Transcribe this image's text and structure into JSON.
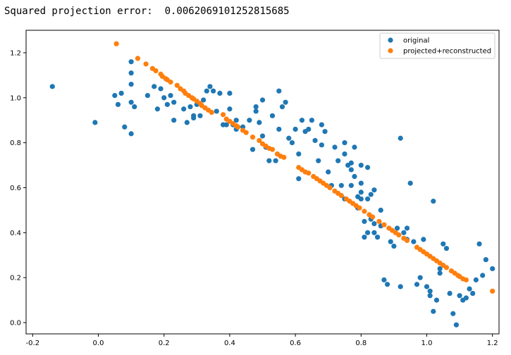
{
  "output": {
    "error_label": "Squared projection error:",
    "error_value": "0.0062069101252815685"
  },
  "colors": {
    "original": "#1f77b4",
    "projected": "#ff7f0e"
  },
  "chart_data": {
    "type": "scatter",
    "title": "",
    "xlabel": "",
    "ylabel": "",
    "xlim": [
      -0.22,
      1.22
    ],
    "ylim": [
      -0.05,
      1.3
    ],
    "xticks": [
      "-0.2",
      "0.0",
      "0.2",
      "0.4",
      "0.6",
      "0.8",
      "1.0",
      "1.2"
    ],
    "yticks": [
      "0.0",
      "0.2",
      "0.4",
      "0.6",
      "0.8",
      "1.0",
      "1.2"
    ],
    "legend_position": "top-right",
    "grid": false,
    "series": [
      {
        "name": "original",
        "color": "#1f77b4",
        "points": [
          [
            -0.14,
            1.05
          ],
          [
            -0.01,
            0.89
          ],
          [
            0.05,
            1.01
          ],
          [
            0.06,
            0.97
          ],
          [
            0.07,
            1.02
          ],
          [
            0.08,
            0.87
          ],
          [
            0.1,
            0.84
          ],
          [
            0.1,
            1.16
          ],
          [
            0.1,
            1.11
          ],
          [
            0.1,
            1.06
          ],
          [
            0.1,
            0.98
          ],
          [
            0.11,
            0.96
          ],
          [
            0.15,
            1.01
          ],
          [
            0.17,
            1.05
          ],
          [
            0.18,
            0.95
          ],
          [
            0.19,
            1.04
          ],
          [
            0.2,
            1.0
          ],
          [
            0.22,
            1.01
          ],
          [
            0.21,
            0.97
          ],
          [
            0.23,
            0.98
          ],
          [
            0.23,
            0.9
          ],
          [
            0.26,
            0.95
          ],
          [
            0.27,
            0.89
          ],
          [
            0.28,
            0.96
          ],
          [
            0.29,
            0.91
          ],
          [
            0.29,
            0.92
          ],
          [
            0.3,
            0.97
          ],
          [
            0.31,
            0.92
          ],
          [
            0.32,
            0.99
          ],
          [
            0.33,
            1.03
          ],
          [
            0.34,
            1.05
          ],
          [
            0.35,
            1.03
          ],
          [
            0.36,
            0.94
          ],
          [
            0.37,
            1.02
          ],
          [
            0.38,
            0.88
          ],
          [
            0.39,
            0.88
          ],
          [
            0.4,
            1.02
          ],
          [
            0.4,
            0.95
          ],
          [
            0.42,
            0.86
          ],
          [
            0.41,
            0.88
          ],
          [
            0.42,
            0.9
          ],
          [
            0.44,
            0.87
          ],
          [
            0.46,
            0.9
          ],
          [
            0.47,
            0.77
          ],
          [
            0.48,
            0.96
          ],
          [
            0.48,
            0.94
          ],
          [
            0.49,
            0.89
          ],
          [
            0.5,
            0.83
          ],
          [
            0.5,
            0.99
          ],
          [
            0.51,
            0.78
          ],
          [
            0.52,
            0.72
          ],
          [
            0.53,
            0.92
          ],
          [
            0.54,
            0.72
          ],
          [
            0.55,
            0.86
          ],
          [
            0.55,
            1.03
          ],
          [
            0.56,
            0.96
          ],
          [
            0.57,
            0.98
          ],
          [
            0.58,
            0.82
          ],
          [
            0.59,
            0.8
          ],
          [
            0.6,
            0.86
          ],
          [
            0.61,
            0.75
          ],
          [
            0.61,
            0.64
          ],
          [
            0.62,
            0.9
          ],
          [
            0.63,
            0.85
          ],
          [
            0.64,
            0.86
          ],
          [
            0.65,
            0.9
          ],
          [
            0.66,
            0.81
          ],
          [
            0.67,
            0.72
          ],
          [
            0.68,
            0.79
          ],
          [
            0.68,
            0.88
          ],
          [
            0.69,
            0.85
          ],
          [
            0.7,
            0.67
          ],
          [
            0.71,
            0.61
          ],
          [
            0.72,
            0.78
          ],
          [
            0.73,
            0.72
          ],
          [
            0.74,
            0.61
          ],
          [
            0.75,
            0.75
          ],
          [
            0.75,
            0.55
          ],
          [
            0.75,
            0.8
          ],
          [
            0.76,
            0.7
          ],
          [
            0.77,
            0.68
          ],
          [
            0.77,
            0.71
          ],
          [
            0.77,
            0.61
          ],
          [
            0.78,
            0.78
          ],
          [
            0.78,
            0.65
          ],
          [
            0.79,
            0.56
          ],
          [
            0.79,
            0.51
          ],
          [
            0.8,
            0.58
          ],
          [
            0.8,
            0.7
          ],
          [
            0.8,
            0.62
          ],
          [
            0.8,
            0.55
          ],
          [
            0.81,
            0.38
          ],
          [
            0.81,
            0.45
          ],
          [
            0.82,
            0.4
          ],
          [
            0.82,
            0.55
          ],
          [
            0.82,
            0.69
          ],
          [
            0.83,
            0.57
          ],
          [
            0.83,
            0.46
          ],
          [
            0.84,
            0.59
          ],
          [
            0.84,
            0.4
          ],
          [
            0.84,
            0.44
          ],
          [
            0.85,
            0.38
          ],
          [
            0.86,
            0.5
          ],
          [
            0.86,
            0.43
          ],
          [
            0.87,
            0.19
          ],
          [
            0.88,
            0.17
          ],
          [
            0.89,
            0.36
          ],
          [
            0.9,
            0.34
          ],
          [
            0.91,
            0.42
          ],
          [
            0.92,
            0.16
          ],
          [
            0.92,
            0.82
          ],
          [
            0.93,
            0.4
          ],
          [
            0.94,
            0.37
          ],
          [
            0.94,
            0.42
          ],
          [
            0.95,
            0.62
          ],
          [
            0.96,
            0.36
          ],
          [
            0.97,
            0.17
          ],
          [
            0.98,
            0.2
          ],
          [
            0.99,
            0.37
          ],
          [
            1.0,
            0.16
          ],
          [
            1.01,
            0.14
          ],
          [
            1.01,
            0.12
          ],
          [
            1.02,
            0.05
          ],
          [
            1.02,
            0.54
          ],
          [
            1.03,
            0.1
          ],
          [
            1.04,
            0.24
          ],
          [
            1.04,
            0.22
          ],
          [
            1.05,
            0.35
          ],
          [
            1.06,
            0.33
          ],
          [
            1.07,
            0.13
          ],
          [
            1.08,
            0.04
          ],
          [
            1.09,
            -0.01
          ],
          [
            1.1,
            0.12
          ],
          [
            1.11,
            0.1
          ],
          [
            1.12,
            0.11
          ],
          [
            1.13,
            0.15
          ],
          [
            1.14,
            0.13
          ],
          [
            1.15,
            0.19
          ],
          [
            1.16,
            0.35
          ],
          [
            1.17,
            0.21
          ],
          [
            1.18,
            0.28
          ],
          [
            1.2,
            0.24
          ]
        ]
      },
      {
        "name": "projected+reconstructed",
        "color": "#ff7f0e",
        "points": [
          [
            0.055,
            1.24
          ],
          [
            0.12,
            1.175
          ],
          [
            0.145,
            1.15
          ],
          [
            0.165,
            1.13
          ],
          [
            0.175,
            1.12
          ],
          [
            0.19,
            1.105
          ],
          [
            0.195,
            1.095
          ],
          [
            0.205,
            1.085
          ],
          [
            0.21,
            1.08
          ],
          [
            0.22,
            1.07
          ],
          [
            0.24,
            1.055
          ],
          [
            0.25,
            1.04
          ],
          [
            0.26,
            1.03
          ],
          [
            0.265,
            1.02
          ],
          [
            0.275,
            1.01
          ],
          [
            0.285,
            1.0
          ],
          [
            0.29,
            0.995
          ],
          [
            0.3,
            0.985
          ],
          [
            0.31,
            0.975
          ],
          [
            0.315,
            0.965
          ],
          [
            0.325,
            0.955
          ],
          [
            0.335,
            0.945
          ],
          [
            0.345,
            0.935
          ],
          [
            0.38,
            0.925
          ],
          [
            0.39,
            0.905
          ],
          [
            0.4,
            0.895
          ],
          [
            0.41,
            0.885
          ],
          [
            0.42,
            0.875
          ],
          [
            0.425,
            0.87
          ],
          [
            0.44,
            0.855
          ],
          [
            0.45,
            0.845
          ],
          [
            0.47,
            0.825
          ],
          [
            0.49,
            0.81
          ],
          [
            0.5,
            0.795
          ],
          [
            0.51,
            0.785
          ],
          [
            0.52,
            0.775
          ],
          [
            0.53,
            0.77
          ],
          [
            0.545,
            0.75
          ],
          [
            0.555,
            0.74
          ],
          [
            0.565,
            0.735
          ],
          [
            0.61,
            0.69
          ],
          [
            0.62,
            0.68
          ],
          [
            0.63,
            0.67
          ],
          [
            0.64,
            0.665
          ],
          [
            0.655,
            0.65
          ],
          [
            0.665,
            0.64
          ],
          [
            0.675,
            0.63
          ],
          [
            0.685,
            0.62
          ],
          [
            0.695,
            0.61
          ],
          [
            0.705,
            0.6
          ],
          [
            0.72,
            0.585
          ],
          [
            0.73,
            0.575
          ],
          [
            0.74,
            0.565
          ],
          [
            0.755,
            0.55
          ],
          [
            0.765,
            0.54
          ],
          [
            0.775,
            0.53
          ],
          [
            0.785,
            0.52
          ],
          [
            0.795,
            0.51
          ],
          [
            0.81,
            0.495
          ],
          [
            0.825,
            0.48
          ],
          [
            0.835,
            0.47
          ],
          [
            0.855,
            0.45
          ],
          [
            0.87,
            0.435
          ],
          [
            0.885,
            0.42
          ],
          [
            0.895,
            0.41
          ],
          [
            0.905,
            0.4
          ],
          [
            0.915,
            0.39
          ],
          [
            0.93,
            0.375
          ],
          [
            0.94,
            0.365
          ],
          [
            0.97,
            0.335
          ],
          [
            0.98,
            0.325
          ],
          [
            0.99,
            0.315
          ],
          [
            1.0,
            0.305
          ],
          [
            1.01,
            0.295
          ],
          [
            1.02,
            0.285
          ],
          [
            1.03,
            0.275
          ],
          [
            1.04,
            0.265
          ],
          [
            1.05,
            0.255
          ],
          [
            1.06,
            0.245
          ],
          [
            1.075,
            0.23
          ],
          [
            1.085,
            0.22
          ],
          [
            1.095,
            0.21
          ],
          [
            1.1,
            0.205
          ],
          [
            1.11,
            0.195
          ],
          [
            1.12,
            0.19
          ],
          [
            1.2,
            0.14
          ]
        ]
      }
    ]
  }
}
